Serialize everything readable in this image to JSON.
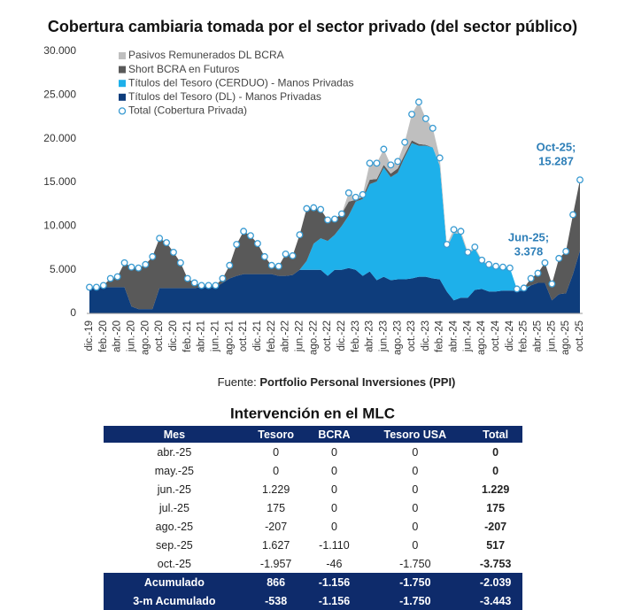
{
  "chart_data": {
    "type": "stacked_area",
    "title": "Cobertura cambiaria tomada por el sector privado (del sector público)",
    "categories": [
      "dic.-19",
      null,
      "feb.-20",
      null,
      "abr.-20",
      null,
      "jun.-20",
      null,
      "ago.-20",
      null,
      "oct.-20",
      null,
      "dic.-20",
      null,
      "feb.-21",
      null,
      "abr.-21",
      null,
      "jun.-21",
      null,
      "ago.-21",
      null,
      "oct.-21",
      null,
      "dic.-21",
      null,
      "feb.-22",
      null,
      "abr.-22",
      null,
      "jun.-22",
      null,
      "ago.-22",
      null,
      "oct.-22",
      null,
      "dic.-22",
      null,
      "feb.-23",
      null,
      "abr.-23",
      null,
      "jun.-23",
      null,
      "ago.-23",
      null,
      "oct.-23",
      null,
      "dic.-23",
      null,
      "feb.-24",
      null,
      "abr.-24",
      null,
      "jun.-24",
      null,
      "ago.-24",
      null,
      "oct.-24",
      null,
      "dic.-24",
      null,
      "feb.-25",
      null,
      "abr.-25",
      null,
      "jun.-25",
      null,
      "ago.-25",
      null,
      "oct.-25"
    ],
    "series": [
      {
        "name": "Pasivos Remunerados DL BCRA",
        "color": "#bfbfbf",
        "values": [
          0,
          0,
          0,
          0,
          0,
          0,
          0,
          0,
          0,
          0,
          0,
          0,
          0,
          0,
          0,
          0,
          0,
          0,
          0,
          0,
          0,
          0,
          0,
          0,
          0,
          0,
          0,
          0,
          0,
          0,
          0,
          0,
          0,
          0,
          0,
          0,
          0,
          1000,
          300,
          300,
          1900,
          1800,
          1800,
          1000,
          800,
          1400,
          3000,
          4800,
          3000,
          2200,
          900,
          400,
          400,
          300,
          200,
          200,
          100,
          100,
          100,
          0,
          0,
          0,
          0,
          0,
          0,
          0,
          0,
          0,
          0,
          0,
          0
        ]
      },
      {
        "name": "Short BCRA en Futuros",
        "color": "#595959",
        "values": [
          0,
          0,
          200,
          1000,
          1200,
          2800,
          4500,
          4700,
          5100,
          6000,
          5700,
          5200,
          4100,
          2900,
          1100,
          600,
          200,
          200,
          200,
          500,
          1500,
          3600,
          4900,
          4400,
          3500,
          2000,
          1000,
          1100,
          2500,
          2200,
          4000,
          6000,
          4100,
          3300,
          2400,
          1800,
          1400,
          1600,
          200,
          200,
          500,
          300,
          300,
          400,
          500,
          300,
          300,
          200,
          100,
          0,
          0,
          0,
          0,
          0,
          0,
          0,
          0,
          0,
          0,
          0,
          0,
          0,
          0,
          800,
          1100,
          2300,
          1878,
          4100,
          4800,
          6800,
          8087
        ]
      },
      {
        "name": "Títulos del Tesoro (CERDUO) - Manos Privadas",
        "color": "#1eb0ea",
        "values": [
          0,
          0,
          0,
          0,
          0,
          0,
          0,
          0,
          0,
          0,
          0,
          0,
          0,
          0,
          0,
          0,
          0,
          0,
          0,
          0,
          0,
          0,
          0,
          0,
          0,
          0,
          0,
          0,
          0,
          0,
          0,
          1000,
          3000,
          3600,
          4000,
          4000,
          5000,
          6000,
          7800,
          8800,
          10000,
          11300,
          12500,
          11800,
          12200,
          14000,
          15500,
          15000,
          15000,
          15000,
          13000,
          5000,
          7700,
          7300,
          5000,
          4700,
          3200,
          3000,
          2800,
          2700,
          2600,
          200,
          300,
          0,
          0,
          0,
          0,
          0,
          0,
          0,
          0
        ]
      },
      {
        "name": "Títulos del Tesoro (DL) - Manos Privadas",
        "color": "#0e3d7c",
        "values": [
          3000,
          3000,
          3000,
          3000,
          3000,
          3000,
          800,
          500,
          500,
          500,
          2900,
          2900,
          2900,
          2900,
          2900,
          2900,
          3000,
          3000,
          3000,
          3500,
          4000,
          4300,
          4500,
          4500,
          4500,
          4500,
          4500,
          4300,
          4300,
          4400,
          5000,
          5000,
          5000,
          5000,
          4300,
          5000,
          5000,
          5200,
          5000,
          4300,
          4800,
          3800,
          4200,
          3800,
          3900,
          3900,
          4000,
          4200,
          4200,
          4000,
          3900,
          2500,
          1500,
          1800,
          1800,
          2700,
          2800,
          2500,
          2500,
          2600,
          2600,
          2600,
          2600,
          3200,
          3500,
          3500,
          1500,
          2200,
          2300,
          4500,
          7200
        ]
      }
    ],
    "total": {
      "name": "Total (Cobertura Privada)",
      "color": "#3a9bd2",
      "values": [
        3000,
        3000,
        3200,
        4000,
        4200,
        5800,
        5300,
        5200,
        5600,
        6500,
        8600,
        8100,
        7000,
        5800,
        4000,
        3500,
        3200,
        3200,
        3200,
        4000,
        5500,
        7900,
        9400,
        8900,
        8000,
        6500,
        5500,
        5400,
        6800,
        6600,
        9000,
        12000,
        12100,
        11900,
        10700,
        10800,
        11400,
        13800,
        13300,
        13600,
        17200,
        17200,
        18800,
        17000,
        17400,
        19600,
        22800,
        24200,
        22300,
        21200,
        17800,
        7900,
        9600,
        9400,
        7000,
        7600,
        6100,
        5600,
        5400,
        5300,
        5200,
        2800,
        2900,
        4000,
        4600,
        5800,
        3378,
        6300,
        7100,
        11300,
        15287
      ]
    },
    "annotations": [
      {
        "lines": [
          "Oct-25;",
          "15.287"
        ],
        "color": "#2e7fb8"
      },
      {
        "lines": [
          "Jun-25;",
          "3.378"
        ],
        "color": "#2e7fb8"
      }
    ],
    "ylim": [
      0,
      30000
    ],
    "yticks": [
      0,
      {
        "value": 5000,
        "label": "5.000"
      },
      {
        "value": 10000,
        "label": "10.000"
      },
      {
        "value": 15000,
        "label": "15.000"
      },
      {
        "value": 20000,
        "label": "20.000"
      },
      {
        "value": 25000,
        "label": "25.000"
      },
      {
        "value": 30000,
        "label": "30.000"
      }
    ],
    "grid": false,
    "legend": "top-left",
    "source_prefix": "Fuente:",
    "source": "Portfolio Personal Inversiones (PPI)"
  },
  "table": {
    "title": "Intervención en el MLC",
    "header": [
      "Mes",
      "Tesoro",
      "BCRA",
      "Tesoro USA",
      "Total"
    ],
    "rows": [
      [
        "abr.-25",
        "0",
        "0",
        "0",
        "0"
      ],
      [
        "may.-25",
        "0",
        "0",
        "0",
        "0"
      ],
      [
        "jun.-25",
        "1.229",
        "0",
        "0",
        "1.229"
      ],
      [
        "jul.-25",
        "175",
        "0",
        "0",
        "175"
      ],
      [
        "ago.-25",
        "-207",
        "0",
        "0",
        "-207"
      ],
      [
        "sep.-25",
        "1.627",
        "-1.110",
        "0",
        "517"
      ],
      [
        "oct.-25",
        "-1.957",
        "-46",
        "-1.750",
        "-3.753"
      ],
      [
        "Acumulado",
        "866",
        "-1.156",
        "-1.750",
        "-2.039"
      ],
      [
        "3-m Acumulado",
        "-538",
        "-1.156",
        "-1.750",
        "-3.443"
      ]
    ]
  }
}
